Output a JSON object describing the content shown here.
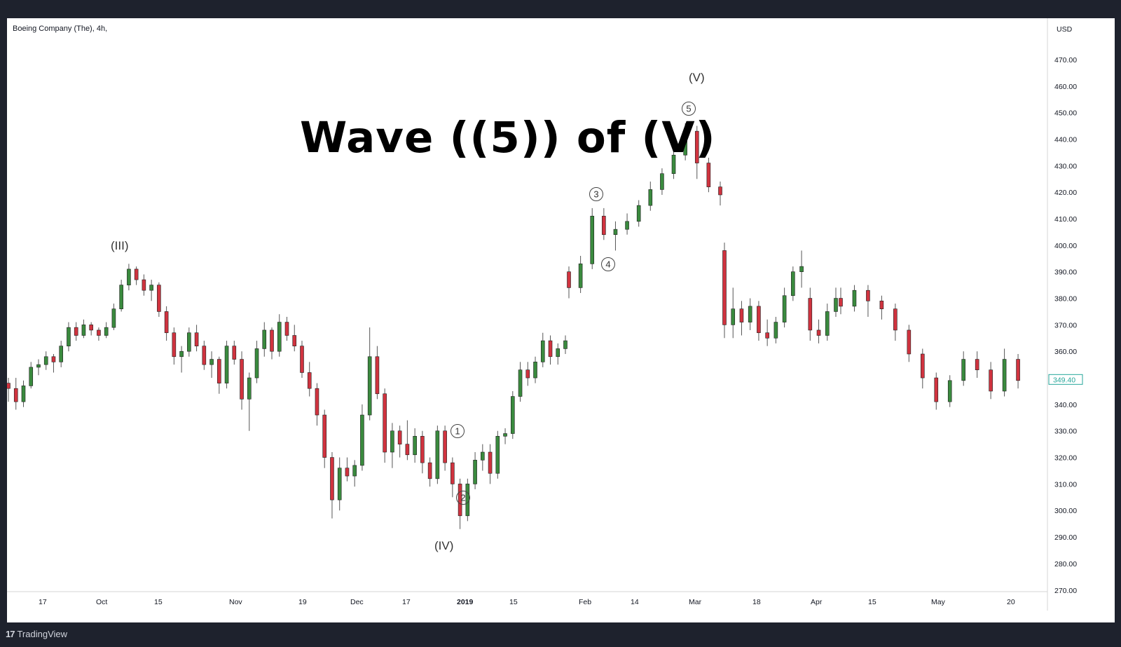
{
  "header": {
    "symbol": "Boeing Company (The), 4h,",
    "currency": "USD"
  },
  "annotation": {
    "title": "Wave ((5)) of (V)"
  },
  "footer": {
    "brand": "TradingView"
  },
  "colors": {
    "up": "#26a69a",
    "up_body": "#3a8a3e",
    "down": "#d0333f",
    "wick": "#555555",
    "last_price": "#26a69a"
  },
  "chart_data": {
    "type": "candlestick",
    "title": "",
    "ylim": [
      265,
      480
    ],
    "y_ticks": [
      "470.00",
      "460.00",
      "450.00",
      "440.00",
      "430.00",
      "420.00",
      "410.00",
      "400.00",
      "390.00",
      "380.00",
      "370.00",
      "360.00",
      "340.00",
      "330.00",
      "320.00",
      "310.00",
      "300.00",
      "290.00",
      "280.00",
      "270.00"
    ],
    "y_tick_values": [
      470,
      460,
      450,
      440,
      430,
      420,
      410,
      400,
      390,
      380,
      370,
      360,
      340,
      330,
      320,
      310,
      300,
      290,
      280,
      270
    ],
    "x_ticks": [
      "17",
      "Oct",
      "15",
      "Nov",
      "19",
      "Dec",
      "17",
      "2019",
      "15",
      "Feb",
      "14",
      "Mar",
      "18",
      "Apr",
      "15",
      "May",
      "20"
    ],
    "last_price": "349.40",
    "last_price_value": 349.4,
    "wave_labels": [
      "(III)",
      "(IV)",
      "(V)",
      "1",
      "2",
      "3",
      "4",
      "5"
    ],
    "ohlc": [
      [
        348,
        350,
        341,
        346
      ],
      [
        346,
        350,
        338,
        341
      ],
      [
        341,
        349,
        339,
        347
      ],
      [
        347,
        356,
        346,
        354
      ],
      [
        354,
        357,
        351,
        355
      ],
      [
        355,
        360,
        353,
        358
      ],
      [
        358,
        359,
        352,
        356
      ],
      [
        356,
        364,
        354,
        362
      ],
      [
        362,
        371,
        360,
        369
      ],
      [
        369,
        371,
        364,
        366
      ],
      [
        366,
        372,
        365,
        370
      ],
      [
        370,
        371,
        366,
        368
      ],
      [
        368,
        369,
        364,
        366
      ],
      [
        366,
        371,
        365,
        369
      ],
      [
        369,
        378,
        368,
        376
      ],
      [
        376,
        387,
        375,
        385
      ],
      [
        385,
        393,
        383,
        391
      ],
      [
        391,
        392,
        385,
        387
      ],
      [
        387,
        389,
        381,
        383
      ],
      [
        383,
        387,
        379,
        385
      ],
      [
        385,
        386,
        373,
        375
      ],
      [
        375,
        377,
        364,
        367
      ],
      [
        367,
        369,
        355,
        358
      ],
      [
        358,
        362,
        352,
        360
      ],
      [
        360,
        369,
        358,
        367
      ],
      [
        367,
        370,
        360,
        362
      ],
      [
        362,
        364,
        353,
        355
      ],
      [
        355,
        360,
        350,
        357
      ],
      [
        357,
        358,
        344,
        348
      ],
      [
        348,
        364,
        346,
        362
      ],
      [
        362,
        364,
        355,
        357
      ],
      [
        357,
        360,
        338,
        342
      ],
      [
        342,
        352,
        330,
        350
      ],
      [
        350,
        364,
        348,
        361
      ],
      [
        361,
        371,
        358,
        368
      ],
      [
        368,
        369,
        357,
        360
      ],
      [
        360,
        374,
        358,
        371
      ],
      [
        371,
        373,
        364,
        366
      ],
      [
        366,
        370,
        360,
        362
      ],
      [
        362,
        364,
        350,
        352
      ],
      [
        352,
        356,
        343,
        346
      ],
      [
        346,
        348,
        332,
        336
      ],
      [
        336,
        338,
        316,
        320
      ],
      [
        320,
        322,
        297,
        304
      ],
      [
        304,
        320,
        300,
        316
      ],
      [
        316,
        320,
        311,
        313
      ],
      [
        313,
        319,
        309,
        317
      ],
      [
        317,
        340,
        315,
        336
      ],
      [
        336,
        369,
        334,
        358
      ],
      [
        358,
        362,
        342,
        344
      ],
      [
        344,
        346,
        318,
        322
      ],
      [
        322,
        333,
        316,
        330
      ],
      [
        330,
        332,
        320,
        325
      ],
      [
        325,
        334,
        319,
        321
      ],
      [
        321,
        331,
        318,
        328
      ],
      [
        328,
        330,
        314,
        318
      ],
      [
        318,
        320,
        309,
        312
      ],
      [
        312,
        332,
        310,
        330
      ],
      [
        330,
        332,
        315,
        318
      ],
      [
        318,
        320,
        305,
        310
      ],
      [
        310,
        312,
        293,
        298
      ],
      [
        298,
        312,
        296,
        310
      ],
      [
        310,
        322,
        308,
        319
      ],
      [
        319,
        325,
        315,
        322
      ],
      [
        322,
        325,
        310,
        314
      ],
      [
        314,
        330,
        312,
        328
      ],
      [
        328,
        331,
        325,
        329
      ],
      [
        329,
        345,
        327,
        343
      ],
      [
        343,
        356,
        341,
        353
      ],
      [
        353,
        356,
        347,
        350
      ],
      [
        350,
        358,
        348,
        356
      ],
      [
        356,
        367,
        354,
        364
      ],
      [
        364,
        366,
        355,
        358
      ],
      [
        358,
        363,
        355,
        361
      ],
      [
        361,
        366,
        359,
        364
      ],
      [
        390,
        392,
        380,
        384
      ],
      [
        384,
        396,
        382,
        393
      ],
      [
        393,
        414,
        391,
        411
      ],
      [
        411,
        414,
        402,
        404
      ],
      [
        404,
        409,
        398,
        406
      ],
      [
        406,
        412,
        404,
        409
      ],
      [
        409,
        417,
        407,
        415
      ],
      [
        415,
        424,
        413,
        421
      ],
      [
        421,
        429,
        419,
        427
      ],
      [
        427,
        436,
        425,
        434
      ],
      [
        434,
        446,
        432,
        443
      ],
      [
        443,
        445,
        425,
        431
      ],
      [
        431,
        433,
        420,
        422
      ],
      [
        422,
        424,
        415,
        419
      ],
      [
        398,
        401,
        365,
        370
      ],
      [
        370,
        384,
        365,
        376
      ],
      [
        376,
        379,
        366,
        371
      ],
      [
        371,
        380,
        368,
        377
      ],
      [
        377,
        379,
        364,
        367
      ],
      [
        367,
        372,
        362,
        365
      ],
      [
        365,
        373,
        363,
        371
      ],
      [
        371,
        384,
        369,
        381
      ],
      [
        381,
        392,
        379,
        390
      ],
      [
        390,
        398,
        384,
        392
      ],
      [
        380,
        384,
        364,
        368
      ],
      [
        368,
        372,
        363,
        366
      ],
      [
        366,
        378,
        364,
        375
      ],
      [
        375,
        384,
        373,
        380
      ],
      [
        380,
        384,
        374,
        377
      ],
      [
        377,
        385,
        375,
        383
      ],
      [
        383,
        385,
        373,
        379
      ],
      [
        379,
        381,
        372,
        376
      ],
      [
        376,
        378,
        364,
        368
      ],
      [
        368,
        370,
        356,
        359
      ],
      [
        359,
        361,
        346,
        350
      ],
      [
        350,
        352,
        338,
        341
      ],
      [
        341,
        351,
        339,
        349
      ],
      [
        349,
        360,
        347,
        357
      ],
      [
        357,
        360,
        350,
        353
      ],
      [
        353,
        356,
        342,
        345
      ],
      [
        345,
        361,
        343,
        357
      ],
      [
        357,
        359,
        346,
        349
      ]
    ]
  }
}
